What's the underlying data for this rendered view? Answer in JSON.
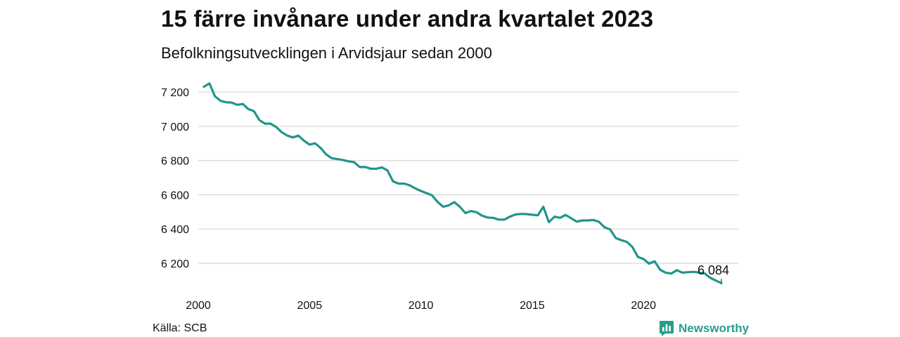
{
  "header": {
    "title": "15 färre invånare under andra kvartalet 2023",
    "subtitle": "Befolkningsutvecklingen i Arvidsjaur sedan 2000"
  },
  "footer": {
    "source": "Källa: SCB",
    "brand": "Newsworthy"
  },
  "colors": {
    "line": "#21958a",
    "grid": "#d9d9d9",
    "text": "#111111",
    "brand": "#2a9d8a"
  },
  "chart_data": {
    "type": "line",
    "title": "15 färre invånare under andra kvartalet 2023",
    "subtitle": "Befolkningsutvecklingen i Arvidsjaur sedan 2000",
    "xlabel": "",
    "ylabel": "",
    "x_ticks": [
      2000,
      2005,
      2010,
      2015,
      2020
    ],
    "y_ticks": [
      6200,
      6400,
      6600,
      6800,
      7000,
      7200
    ],
    "y_tick_labels": [
      "6 200",
      "6 400",
      "6 600",
      "6 800",
      "7 000",
      "7 200"
    ],
    "ylim": [
      6070,
      7250
    ],
    "xlim": [
      2000.0,
      2023.5
    ],
    "grid": "horizontal",
    "legend": "none",
    "end_label": "6 084",
    "series": [
      {
        "x": [
          2000.25,
          2000.5,
          2000.75,
          2001.0,
          2001.25,
          2001.5,
          2001.75,
          2002.0,
          2002.25,
          2002.5,
          2002.75,
          2003.0,
          2003.25,
          2003.5,
          2003.75,
          2004.0,
          2004.25,
          2004.5,
          2004.75,
          2005.0,
          2005.25,
          2005.5,
          2005.75,
          2006.0,
          2006.25,
          2006.5,
          2006.75,
          2007.0,
          2007.25,
          2007.5,
          2007.75,
          2008.0,
          2008.25,
          2008.5,
          2008.75,
          2009.0,
          2009.25,
          2009.5,
          2009.75,
          2010.0,
          2010.25,
          2010.5,
          2010.75,
          2011.0,
          2011.25,
          2011.5,
          2011.75,
          2012.0,
          2012.25,
          2012.5,
          2012.75,
          2013.0,
          2013.25,
          2013.5,
          2013.75,
          2014.0,
          2014.25,
          2014.5,
          2014.75,
          2015.0,
          2015.25,
          2015.5,
          2015.75,
          2016.0,
          2016.25,
          2016.5,
          2016.75,
          2017.0,
          2017.25,
          2017.5,
          2017.75,
          2018.0,
          2018.25,
          2018.5,
          2018.75,
          2019.0,
          2019.25,
          2019.5,
          2019.75,
          2020.0,
          2020.25,
          2020.5,
          2020.75,
          2021.0,
          2021.25,
          2021.5,
          2021.75,
          2022.0,
          2022.25,
          2022.5,
          2022.75,
          2023.0,
          2023.25,
          2023.5
        ],
        "values": [
          7230,
          7250,
          7175,
          7148,
          7140,
          7138,
          7125,
          7130,
          7100,
          7088,
          7035,
          7015,
          7015,
          6995,
          6965,
          6945,
          6935,
          6945,
          6915,
          6893,
          6900,
          6873,
          6835,
          6813,
          6808,
          6803,
          6795,
          6790,
          6762,
          6762,
          6752,
          6752,
          6760,
          6742,
          6678,
          6665,
          6665,
          6655,
          6637,
          6622,
          6610,
          6597,
          6558,
          6530,
          6538,
          6557,
          6530,
          6493,
          6505,
          6498,
          6478,
          6467,
          6465,
          6455,
          6455,
          6472,
          6485,
          6488,
          6487,
          6483,
          6480,
          6530,
          6440,
          6472,
          6465,
          6482,
          6463,
          6443,
          6450,
          6450,
          6453,
          6442,
          6410,
          6398,
          6348,
          6335,
          6325,
          6295,
          6237,
          6225,
          6198,
          6212,
          6162,
          6145,
          6140,
          6160,
          6145,
          6148,
          6150,
          6146,
          6140,
          6115,
          6099,
          6084
        ]
      }
    ]
  }
}
